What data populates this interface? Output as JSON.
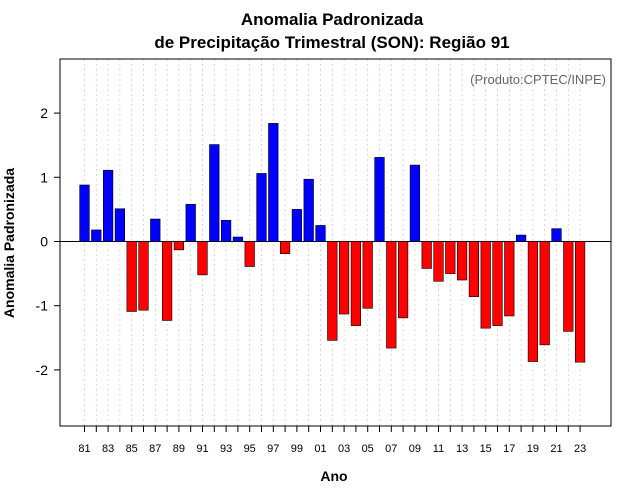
{
  "chart_data": {
    "type": "bar",
    "title_line1": "Anomalia Padronizada",
    "title_line2": "de Precipitação Trimestral (SON): Região 91",
    "xlabel": "Ano",
    "ylabel": "Anomalia Padronizada",
    "annotation": "(Produto:CPTEC/INPE)",
    "ylim": [
      -2.85,
      2.85
    ],
    "yticks": [
      2,
      1,
      0,
      -1,
      -2
    ],
    "ytick_labels": [
      "2",
      "1",
      "0",
      "-1",
      "-2"
    ],
    "grid": true,
    "positive_color": "#0000ff",
    "negative_color": "#ff0000",
    "categories": [
      "1981",
      "1982",
      "1983",
      "1984",
      "1985",
      "1986",
      "1987",
      "1988",
      "1989",
      "1990",
      "1991",
      "1992",
      "1993",
      "1994",
      "1995",
      "1996",
      "1997",
      "1998",
      "1999",
      "2000",
      "2001",
      "2002",
      "2003",
      "2004",
      "2005",
      "2006",
      "2007",
      "2008",
      "2009",
      "2010",
      "2011",
      "2012",
      "2013",
      "2014",
      "2015",
      "2016",
      "2017",
      "2018",
      "2019",
      "2020",
      "2021",
      "2022",
      "2023"
    ],
    "tick_labels": [
      "81",
      "",
      "83",
      "",
      "85",
      "",
      "87",
      "",
      "89",
      "",
      "91",
      "",
      "93",
      "",
      "95",
      "",
      "97",
      "",
      "99",
      "",
      "01",
      "",
      "03",
      "",
      "05",
      "",
      "07",
      "",
      "09",
      "",
      "11",
      "",
      "13",
      "",
      "15",
      "",
      "17",
      "",
      "19",
      "",
      "21",
      "",
      "23"
    ],
    "values": [
      0.88,
      0.18,
      1.11,
      0.51,
      -1.09,
      -1.07,
      0.35,
      -1.23,
      -0.13,
      0.58,
      -0.52,
      1.51,
      0.33,
      0.07,
      -0.39,
      1.06,
      1.84,
      -0.19,
      0.5,
      0.97,
      0.25,
      -1.54,
      -1.13,
      -1.31,
      -1.04,
      1.31,
      -1.66,
      -1.19,
      1.19,
      -0.42,
      -0.62,
      -0.5,
      -0.6,
      -0.86,
      -1.35,
      -1.31,
      -1.16,
      0.1,
      -1.87,
      -1.61,
      0.2,
      -1.4,
      -1.88
    ]
  }
}
